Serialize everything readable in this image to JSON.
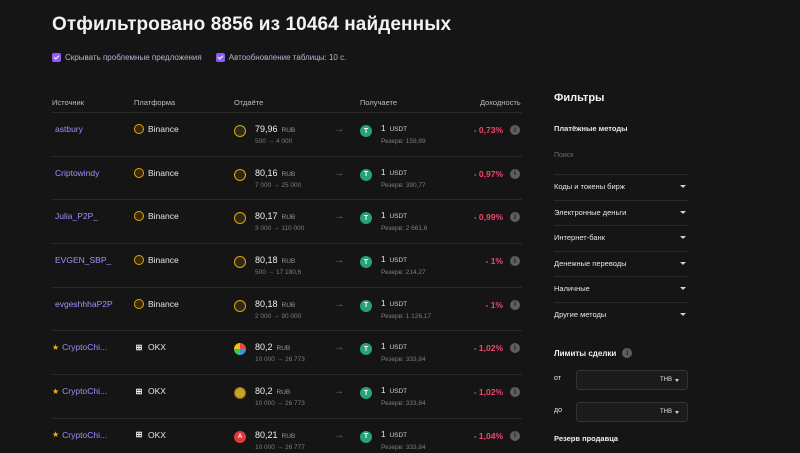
{
  "title": "Отфильтровано 8856 из 10464 найденных",
  "options": [
    {
      "label": "Скрывать проблемные предложения",
      "checked": true
    },
    {
      "label": "Автообновление таблицы: 10 с.",
      "checked": true
    }
  ],
  "columns": {
    "source": "Источник",
    "platform": "Платформа",
    "give": "Отдаёте",
    "receive": "Получаете",
    "yield": "Доходность"
  },
  "rows": [
    {
      "source": "astbury",
      "star": "",
      "platform": "Binance",
      "platform_icon": "binance-icon",
      "give_icon": "bnb-icon",
      "give_amount": "79,96",
      "give_currency": "RUB",
      "give_range": "500 → 4 000",
      "receive_amount": "1",
      "receive_currency": "USDT",
      "reserve": "Резерв: 159,89",
      "yield": "- 0,73%"
    },
    {
      "source": "Criptowindy",
      "star": "",
      "platform": "Binance",
      "platform_icon": "binance-icon",
      "give_icon": "bnb-icon",
      "give_amount": "80,16",
      "give_currency": "RUB",
      "give_range": "7 000 → 25 000",
      "receive_amount": "1",
      "receive_currency": "USDT",
      "reserve": "Резерв: 390,77",
      "yield": "- 0,97%"
    },
    {
      "source": "Julia_P2P_",
      "star": "",
      "platform": "Binance",
      "platform_icon": "binance-icon",
      "give_icon": "bnb-icon",
      "give_amount": "80,17",
      "give_currency": "RUB",
      "give_range": "3 000 → 110 000",
      "receive_amount": "1",
      "receive_currency": "USDT",
      "reserve": "Резерв: 2 661,6",
      "yield": "- 0,99%"
    },
    {
      "source": "EVGEN_SBP_",
      "star": "",
      "platform": "Binance",
      "platform_icon": "binance-icon",
      "give_icon": "bnb-icon",
      "give_amount": "80,18",
      "give_currency": "RUB",
      "give_range": "500 → 17 180,6",
      "receive_amount": "1",
      "receive_currency": "USDT",
      "reserve": "Резерв: 214,27",
      "yield": "- 1%"
    },
    {
      "source": "evgeshhhaP2P",
      "star": "",
      "platform": "Binance",
      "platform_icon": "binance-icon",
      "give_icon": "bnb-icon",
      "give_amount": "80,18",
      "give_currency": "RUB",
      "give_range": "2 000 → 90 000",
      "receive_amount": "1",
      "receive_currency": "USDT",
      "reserve": "Резерв: 1 126,17",
      "yield": "- 1%"
    },
    {
      "source": "CryptoChi...",
      "star": "★",
      "platform": "OKX",
      "platform_icon": "okx-icon",
      "give_icon": "multicolor-coin-icon",
      "give_amount": "80,2",
      "give_currency": "RUB",
      "give_range": "10 000 → 26 773",
      "receive_amount": "1",
      "receive_currency": "USDT",
      "reserve": "Резерв: 333,84",
      "yield": "- 1,02%"
    },
    {
      "source": "CryptoChi...",
      "star": "★",
      "platform": "OKX",
      "platform_icon": "okx-icon",
      "give_icon": "gold-coin-icon",
      "give_amount": "80,2",
      "give_currency": "RUB",
      "give_range": "10 000 → 26 773",
      "receive_amount": "1",
      "receive_currency": "USDT",
      "reserve": "Резерв: 333,84",
      "yield": "- 1,02%"
    },
    {
      "source": "CryptoChi...",
      "star": "★",
      "platform": "OKX",
      "platform_icon": "okx-icon",
      "give_icon": "alfa-bank-icon",
      "give_amount": "80,21",
      "give_currency": "RUB",
      "give_range": "10 000 → 26 777",
      "receive_amount": "1",
      "receive_currency": "USDT",
      "reserve": "Резерв: 333,84",
      "yield": "- 1,04%"
    }
  ],
  "filters": {
    "title": "Фильтры",
    "payment_methods": "Платёжные методы",
    "search_placeholder": "Поиск",
    "groups": [
      "Коды и токены бирж",
      "Электронные деньги",
      "Интернет-банк",
      "Денежные переводы",
      "Наличные",
      "Другие методы"
    ],
    "limits_title": "Лимиты сделки",
    "from_label": "от",
    "to_label": "до",
    "currency": "THB",
    "reserve_title": "Резерв продавца"
  },
  "colors": {
    "accent": "#a78bfa",
    "negative": "#f0476b",
    "usdt": "#26a17b",
    "binance": "#e0a800"
  }
}
